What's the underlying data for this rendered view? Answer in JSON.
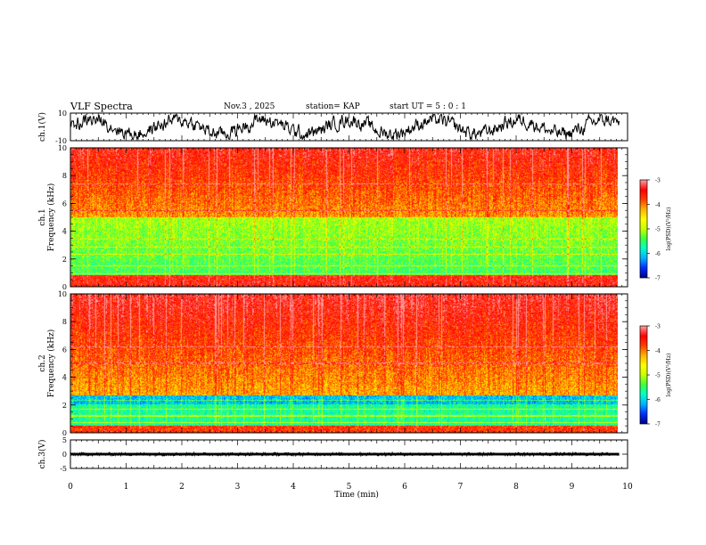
{
  "header": {
    "title": "VLF Spectra",
    "date": "Nov.3 , 2025",
    "station": "station= KAP",
    "start_ut": "start UT = 5 : 0 : 1"
  },
  "chart_data": [
    {
      "type": "line",
      "name": "ch1-waveform",
      "ylabel": "ch.1(V)",
      "ylim": [
        -10,
        10
      ],
      "yticks": [
        "10",
        "-10"
      ],
      "x_range_min": [
        0,
        9.85
      ],
      "line_color": "#000000"
    },
    {
      "type": "heatmap",
      "name": "ch1-spectrogram",
      "ylabel": "ch.1\nFrequency (kHz)",
      "ylabel_line1": "ch.1",
      "ylabel_line2": "Frequency (kHz)",
      "ylim": [
        0,
        10
      ],
      "yticks": [
        "0",
        "2",
        "4",
        "6",
        "8",
        "10"
      ],
      "x_range_min": [
        0,
        9.85
      ],
      "colorbar": {
        "label": "log(PSD)(V²/Hz)",
        "range": [
          -7,
          -3
        ],
        "ticks": [
          "-3",
          "-4",
          "-5",
          "-6",
          "-7"
        ]
      }
    },
    {
      "type": "heatmap",
      "name": "ch2-spectrogram",
      "ylabel": "ch.2\nFrequency (kHz)",
      "ylabel_line1": "ch.2",
      "ylabel_line2": "Frequency (kHz)",
      "ylim": [
        0,
        10
      ],
      "yticks": [
        "0",
        "2",
        "4",
        "6",
        "8",
        "10"
      ],
      "x_range_min": [
        0,
        9.85
      ],
      "colorbar": {
        "label": "log(PSD)(V²/Hz)",
        "range": [
          -7,
          -3
        ],
        "ticks": [
          "-3",
          "-4",
          "-5",
          "-6",
          "-7"
        ]
      }
    },
    {
      "type": "line",
      "name": "ch3-waveform",
      "ylabel": "ch.3(V)",
      "ylim": [
        -5,
        5
      ],
      "yticks": [
        "5",
        "0",
        "-5"
      ],
      "x_range_min": [
        0,
        9.85
      ],
      "line_color": "#000000"
    }
  ],
  "x_axis": {
    "label": "Time (min)",
    "range": [
      0,
      10
    ],
    "ticks": [
      "0",
      "1",
      "2",
      "3",
      "4",
      "5",
      "6",
      "7",
      "8",
      "9",
      "10"
    ]
  },
  "colormap": [
    "#00008c",
    "#0030ff",
    "#00b4ff",
    "#00ffc8",
    "#40ff40",
    "#c8ff00",
    "#ffff00",
    "#ffb400",
    "#ff4000",
    "#ff0000",
    "#ff9a9a"
  ]
}
